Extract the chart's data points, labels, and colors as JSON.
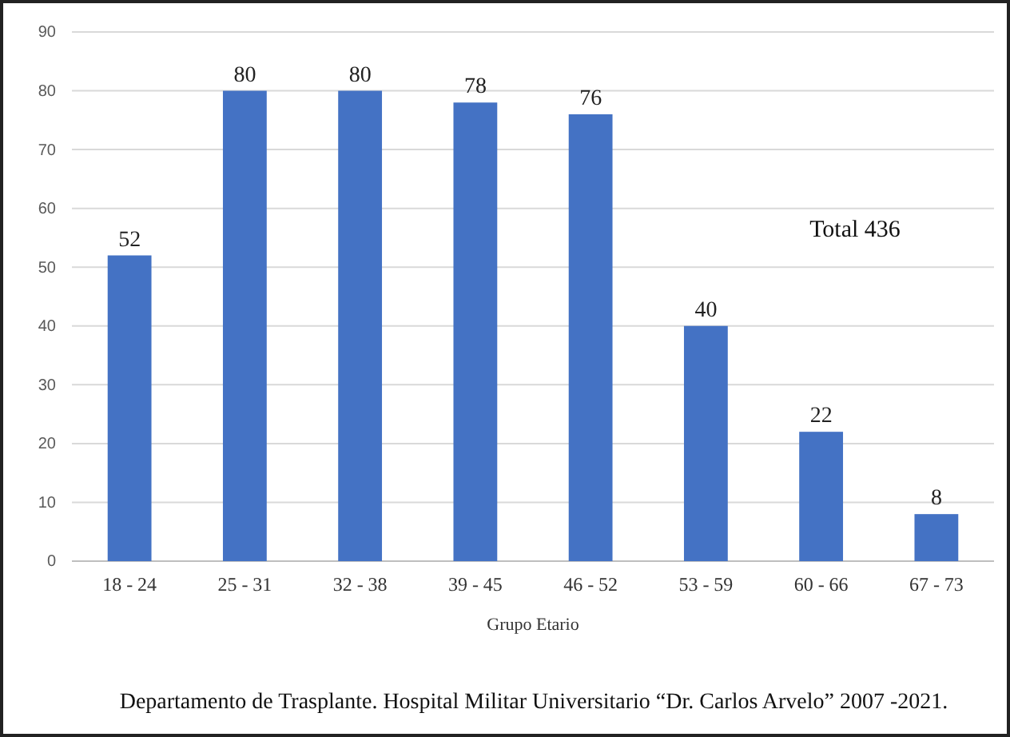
{
  "chart_data": {
    "type": "bar",
    "xlabel": "Grupo Etario",
    "categories": [
      "18 - 24",
      "25 - 31",
      "32 - 38",
      "39 - 45",
      "46 - 52",
      "53 - 59",
      "60 - 66",
      "67 - 73"
    ],
    "values": [
      52,
      80,
      80,
      78,
      76,
      40,
      22,
      8
    ],
    "color": "#4472c4",
    "ylim": [
      0,
      90
    ],
    "yticks": [
      0,
      10,
      20,
      30,
      40,
      50,
      60,
      70,
      80,
      90
    ],
    "grid": "y",
    "data_labels": true,
    "annotations": [
      "Total 436",
      "Departamento de Trasplante. Hospital Militar Universitario “Dr. Carlos Arvelo” 2007   -2021."
    ]
  }
}
